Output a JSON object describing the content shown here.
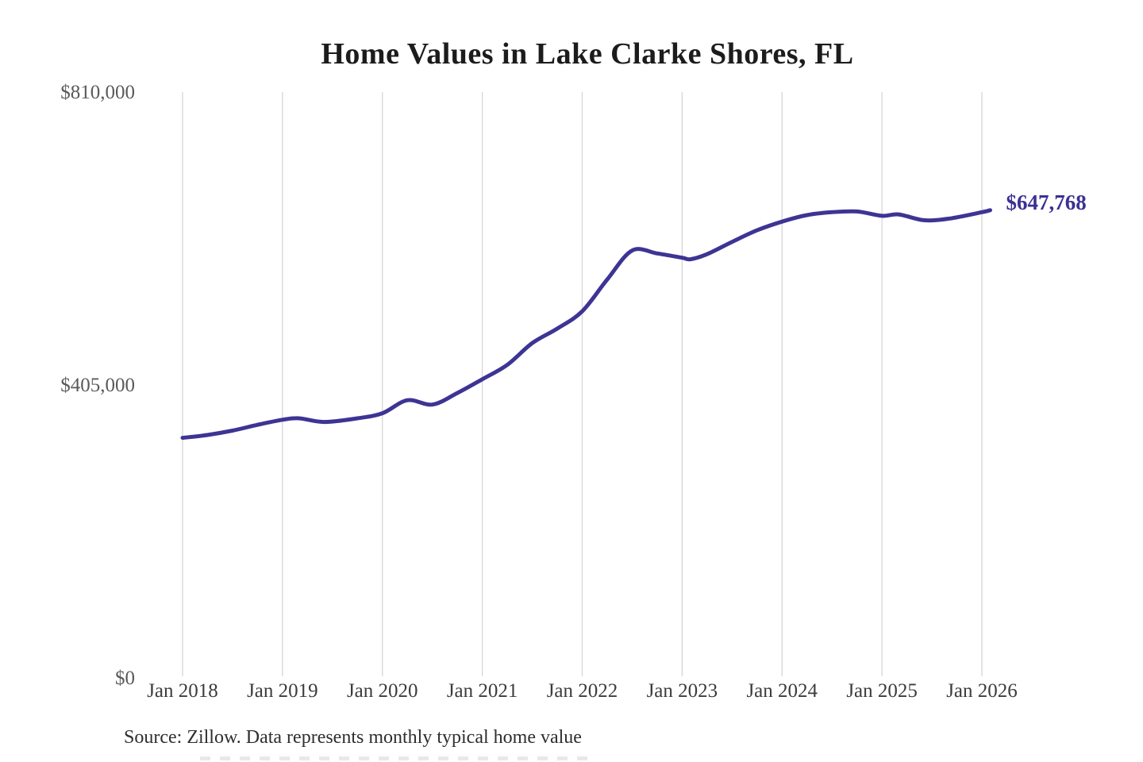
{
  "title": "Home Values in Lake Clarke Shores, FL",
  "end_label": "$647,768",
  "source": "Source: Zillow. Data represents monthly typical home value",
  "y_axis": {
    "ticks": [
      {
        "label": "$810,000",
        "value": 810000
      },
      {
        "label": "$405,000",
        "value": 405000
      },
      {
        "label": "$0",
        "value": 0
      }
    ]
  },
  "x_axis": {
    "ticks": [
      {
        "label": "Jan 2018",
        "year": 2018
      },
      {
        "label": "Jan 2019",
        "year": 2019
      },
      {
        "label": "Jan 2020",
        "year": 2020
      },
      {
        "label": "Jan 2021",
        "year": 2021
      },
      {
        "label": "Jan 2022",
        "year": 2022
      },
      {
        "label": "Jan 2023",
        "year": 2023
      },
      {
        "label": "Jan 2024",
        "year": 2024
      },
      {
        "label": "Jan 2025",
        "year": 2025
      },
      {
        "label": "Jan 2026",
        "year": 2026
      }
    ]
  },
  "colors": {
    "line": "#3d3494",
    "end_label": "#3b3193",
    "grid": "#d6d6d6",
    "title": "#1c1c1c",
    "y_tick_text": "#5a5a5a",
    "x_tick_text": "#3c3c3c",
    "source_text": "#2e2e2e"
  },
  "chart_data": {
    "type": "line",
    "title": "Home Values in Lake Clarke Shores, FL",
    "xlabel": "",
    "ylabel": "",
    "ylim": [
      0,
      810000
    ],
    "x_range": [
      "2018-01",
      "2026-02"
    ],
    "grid": "vertical-year-gridlines-only",
    "legend": "none",
    "annotation": {
      "text": "$647,768",
      "at": "2026-02"
    },
    "series": [
      {
        "name": "Monthly typical home value",
        "points": [
          [
            "2018-01",
            333000
          ],
          [
            "2018-04",
            337000
          ],
          [
            "2018-07",
            343000
          ],
          [
            "2018-10",
            351000
          ],
          [
            "2019-01",
            358000
          ],
          [
            "2019-03",
            360000
          ],
          [
            "2019-06",
            355000
          ],
          [
            "2019-10",
            360000
          ],
          [
            "2020-01",
            367000
          ],
          [
            "2020-04",
            385000
          ],
          [
            "2020-07",
            379000
          ],
          [
            "2020-10",
            395000
          ],
          [
            "2021-01",
            414000
          ],
          [
            "2021-04",
            434000
          ],
          [
            "2021-07",
            464000
          ],
          [
            "2021-10",
            484000
          ],
          [
            "2022-01",
            508000
          ],
          [
            "2022-04",
            552000
          ],
          [
            "2022-07",
            592000
          ],
          [
            "2022-10",
            588000
          ],
          [
            "2023-01",
            582000
          ],
          [
            "2023-02",
            580000
          ],
          [
            "2023-04",
            587000
          ],
          [
            "2023-07",
            604000
          ],
          [
            "2023-10",
            620000
          ],
          [
            "2024-01",
            632000
          ],
          [
            "2024-04",
            641000
          ],
          [
            "2024-07",
            645000
          ],
          [
            "2024-10",
            646000
          ],
          [
            "2025-01",
            640000
          ],
          [
            "2025-03",
            642000
          ],
          [
            "2025-06",
            634000
          ],
          [
            "2025-09",
            636000
          ],
          [
            "2026-01",
            645000
          ],
          [
            "2026-02",
            647768
          ]
        ]
      }
    ]
  }
}
